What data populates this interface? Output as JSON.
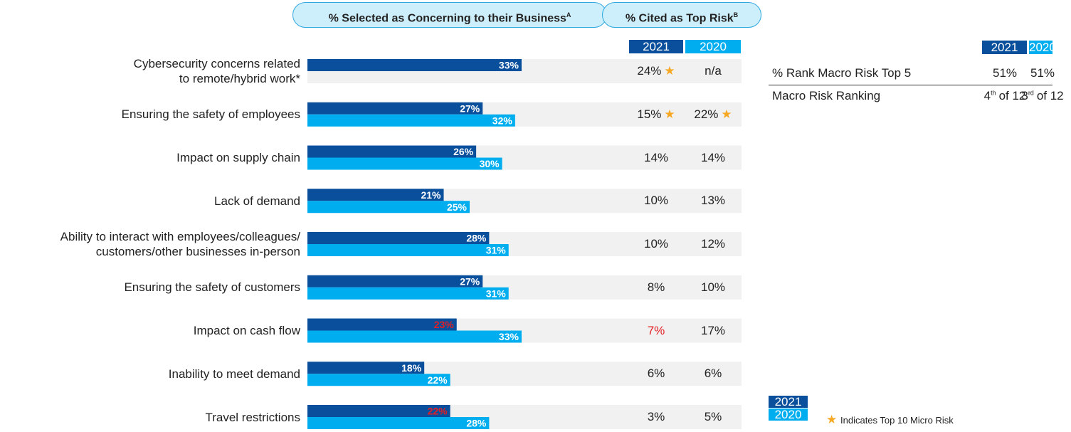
{
  "chart_data": {
    "type": "bar",
    "orientation": "horizontal",
    "title": "% Selected as Concerning to their Business",
    "title_sup": "A",
    "categories": [
      "Cybersecurity concerns related\nto remote/hybrid work*",
      "Ensuring the safety of employees",
      "Impact on supply chain",
      "Lack of demand",
      "Ability to interact with employees/colleagues/\ncustomers/other businesses in-person",
      "Ensuring the safety of customers",
      "Impact on cash flow",
      "Inability to meet demand",
      "Travel restrictions"
    ],
    "xlim": [
      0,
      100
    ],
    "series": [
      {
        "name": "2021",
        "color": "#0a4f9c",
        "values": [
          33,
          27,
          26,
          21,
          28,
          27,
          23,
          18,
          22
        ],
        "value_labels": [
          "33%",
          "27%",
          "26%",
          "21%",
          "28%",
          "27%",
          "23%",
          "18%",
          "22%"
        ],
        "label_colors": [
          "#ffffff",
          "#ffffff",
          "#ffffff",
          "#ffffff",
          "#ffffff",
          "#ffffff",
          "#e31e24",
          "#ffffff",
          "#e31e24"
        ]
      },
      {
        "name": "2020",
        "color": "#00aeef",
        "values": [
          null,
          32,
          30,
          25,
          31,
          31,
          33,
          22,
          28
        ],
        "value_labels": [
          null,
          "32%",
          "30%",
          "25%",
          "31%",
          "31%",
          "33%",
          "22%",
          "28%"
        ],
        "label_colors": [
          null,
          "#ffffff",
          "#ffffff",
          "#ffffff",
          "#ffffff",
          "#ffffff",
          "#ffffff",
          "#ffffff",
          "#ffffff"
        ]
      }
    ]
  },
  "top_risk": {
    "title": "% Cited as Top Risk",
    "title_sup": "B",
    "rows": [
      [
        "24%",
        "n/a"
      ],
      [
        "15%",
        "22%"
      ],
      [
        "14%",
        "14%"
      ],
      [
        "10%",
        "13%"
      ],
      [
        "10%",
        "12%"
      ],
      [
        "8%",
        "10%"
      ],
      [
        "7%",
        "17%"
      ],
      [
        "6%",
        "6%"
      ],
      [
        "3%",
        "5%"
      ]
    ],
    "starred": [
      [
        true,
        false
      ],
      [
        true,
        true
      ],
      [
        false,
        false
      ],
      [
        false,
        false
      ],
      [
        false,
        false
      ],
      [
        false,
        false
      ],
      [
        false,
        false
      ],
      [
        false,
        false
      ],
      [
        false,
        false
      ]
    ],
    "colors": [
      [
        "#222",
        "#222"
      ],
      [
        "#222",
        "#222"
      ],
      [
        "#222",
        "#222"
      ],
      [
        "#222",
        "#222"
      ],
      [
        "#222",
        "#222"
      ],
      [
        "#222",
        "#222"
      ],
      [
        "#e31e24",
        "#222"
      ],
      [
        "#222",
        "#222"
      ],
      [
        "#222",
        "#222"
      ]
    ]
  },
  "macro": {
    "rows": [
      {
        "label": "% Rank Macro Risk Top 5",
        "cells": [
          {
            "main": "51%"
          },
          {
            "main": "51%"
          }
        ]
      },
      {
        "label": "Macro Risk Ranking",
        "cells": [
          {
            "main": "4",
            "sup": "th",
            "tail": "of 12"
          },
          {
            "main": "3",
            "sup": "rd",
            "tail": "of 12"
          }
        ]
      }
    ]
  },
  "legend": {
    "star_note": "Indicates Top 10 Micro Risk",
    "star_color": "#f7a823"
  }
}
